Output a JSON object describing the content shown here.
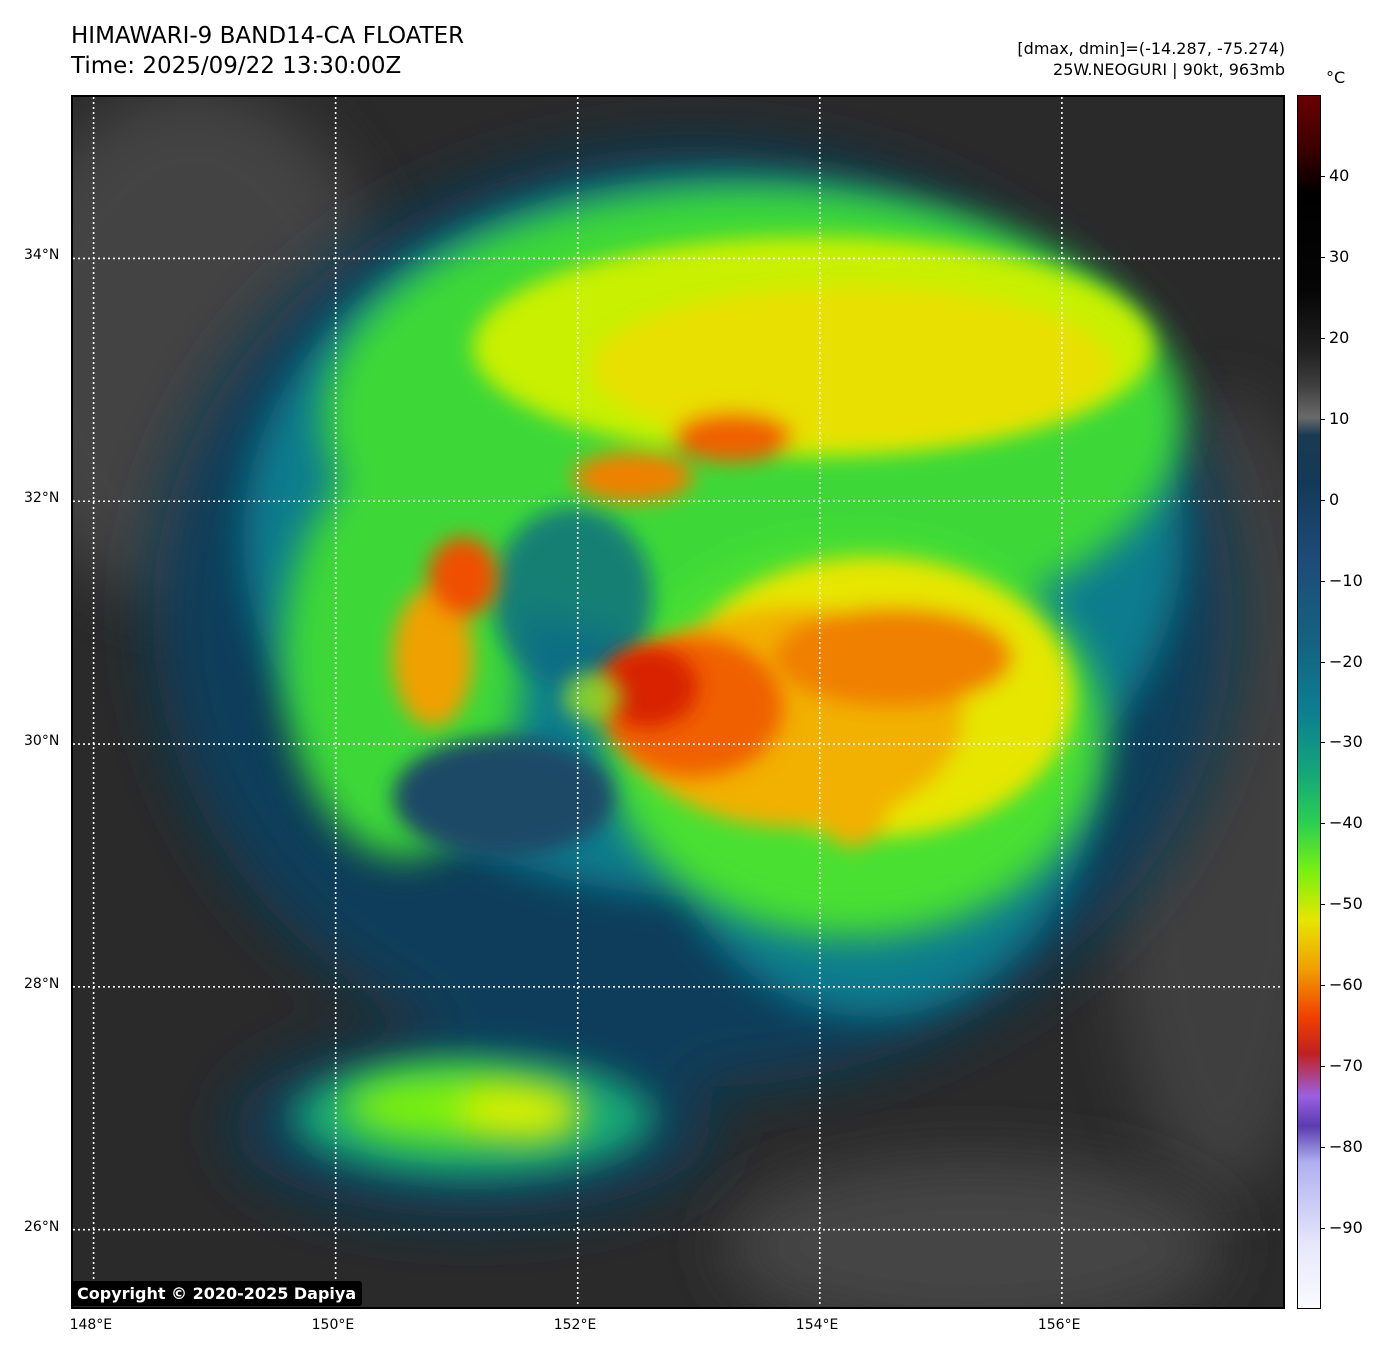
{
  "header": {
    "title": "HIMAWARI-9 BAND14-CA FLOATER",
    "time": "Time: 2025/09/22 13:30:00Z",
    "range": "[dmax, dmin]=(-14.287, -75.274)",
    "storm": "25W.NEOGURI | 90kt, 963mb"
  },
  "map": {
    "lon_range": [
      147.83,
      157.86
    ],
    "lat_range": [
      25.33,
      35.33
    ],
    "lon_ticks": [
      {
        "v": 148,
        "label": "148°E"
      },
      {
        "v": 150,
        "label": "150°E"
      },
      {
        "v": 152,
        "label": "152°E"
      },
      {
        "v": 154,
        "label": "154°E"
      },
      {
        "v": 156,
        "label": "156°E"
      }
    ],
    "lat_ticks": [
      {
        "v": 26,
        "label": "26°N"
      },
      {
        "v": 28,
        "label": "28°N"
      },
      {
        "v": 30,
        "label": "30°N"
      },
      {
        "v": 32,
        "label": "32°N"
      },
      {
        "v": 34,
        "label": "34°N"
      }
    ],
    "gridlines": "dotted white"
  },
  "colorbar": {
    "unit": "°C",
    "range": [
      -100,
      50
    ],
    "ticks": [
      {
        "v": 40,
        "label": "40"
      },
      {
        "v": 30,
        "label": "30"
      },
      {
        "v": 20,
        "label": "20"
      },
      {
        "v": 10,
        "label": "10"
      },
      {
        "v": 0,
        "label": "0"
      },
      {
        "v": -10,
        "label": "−10"
      },
      {
        "v": -20,
        "label": "−20"
      },
      {
        "v": -30,
        "label": "−30"
      },
      {
        "v": -40,
        "label": "−40"
      },
      {
        "v": -50,
        "label": "−50"
      },
      {
        "v": -60,
        "label": "−60"
      },
      {
        "v": -70,
        "label": "−70"
      },
      {
        "v": -80,
        "label": "−80"
      },
      {
        "v": -90,
        "label": "−90"
      }
    ]
  },
  "copyright": "Copyright © 2020-2025 Dapiya"
}
